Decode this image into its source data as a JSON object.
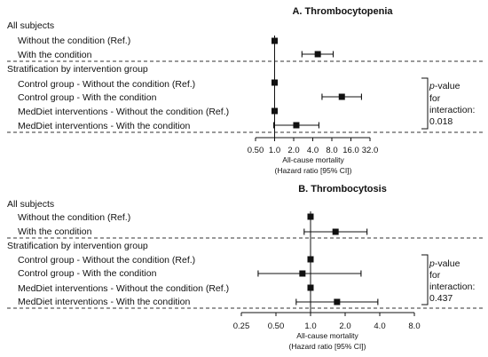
{
  "chart_data": [
    {
      "type": "forest",
      "title": "A. Thrombocytopenia",
      "xlabel": "All-cause mortality",
      "xlabel2": "(Hazard ratio [95% CI])",
      "x_scale": "log2",
      "xlim": [
        0.5,
        32.0
      ],
      "ticks": [
        "0.50",
        "1.0",
        "2.0",
        "4.0",
        "8.0",
        "16.0",
        "32.0"
      ],
      "reference_line": 1.0,
      "rows": [
        {
          "label": "All subjects",
          "kind": "header"
        },
        {
          "label": "Without the condition (Ref.)",
          "kind": "item",
          "hr": 1.0,
          "lo": null,
          "hi": null
        },
        {
          "label": "With the condition",
          "kind": "item",
          "hr": 4.8,
          "lo": 2.7,
          "hi": 8.4
        },
        {
          "label": "Stratification by intervention group",
          "kind": "header"
        },
        {
          "label": "Control group - Without the condition (Ref.)",
          "kind": "item",
          "hr": 1.0,
          "lo": null,
          "hi": null
        },
        {
          "label": "Control group - With the condition",
          "kind": "item",
          "hr": 11.5,
          "lo": 5.6,
          "hi": 23.5
        },
        {
          "label": "MedDiet interventions - Without the condition (Ref.)",
          "kind": "item",
          "hr": 1.0,
          "lo": null,
          "hi": null
        },
        {
          "label": "MedDiet interventions - With the condition",
          "kind": "item",
          "hr": 2.2,
          "lo": 0.97,
          "hi": 5.0
        }
      ],
      "annotation": {
        "p_label": "p",
        "p_suffix": "-value",
        "line2": "for",
        "line3": "interaction:",
        "value": "0.018"
      }
    },
    {
      "type": "forest",
      "title": "B. Thrombocytosis",
      "xlabel": "All-cause mortality",
      "xlabel2": "(Hazard ratio [95% CI])",
      "x_scale": "log2",
      "xlim": [
        0.25,
        8.0
      ],
      "ticks": [
        "0.25",
        "0.50",
        "1.0",
        "2.0",
        "4.0",
        "8.0"
      ],
      "reference_line": 1.0,
      "rows": [
        {
          "label": "All subjects",
          "kind": "header"
        },
        {
          "label": "Without the condition (Ref.)",
          "kind": "item",
          "hr": 1.0,
          "lo": null,
          "hi": null
        },
        {
          "label": "With the condition",
          "kind": "item",
          "hr": 1.65,
          "lo": 0.88,
          "hi": 3.1
        },
        {
          "label": "Stratification by intervention group",
          "kind": "header"
        },
        {
          "label": "Control group - Without the condition (Ref.)",
          "kind": "item",
          "hr": 1.0,
          "lo": null,
          "hi": null
        },
        {
          "label": "Control group - With the condition",
          "kind": "item",
          "hr": 0.85,
          "lo": 0.35,
          "hi": 2.75
        },
        {
          "label": "MedDiet interventions - Without the condition (Ref.)",
          "kind": "item",
          "hr": 1.0,
          "lo": null,
          "hi": null
        },
        {
          "label": "MedDiet interventions - With the condition",
          "kind": "item",
          "hr": 1.7,
          "lo": 0.75,
          "hi": 3.85
        }
      ],
      "annotation": {
        "p_label": "p",
        "p_suffix": "-value",
        "line2": "for",
        "line3": "interaction:",
        "value": "0.437"
      }
    }
  ]
}
